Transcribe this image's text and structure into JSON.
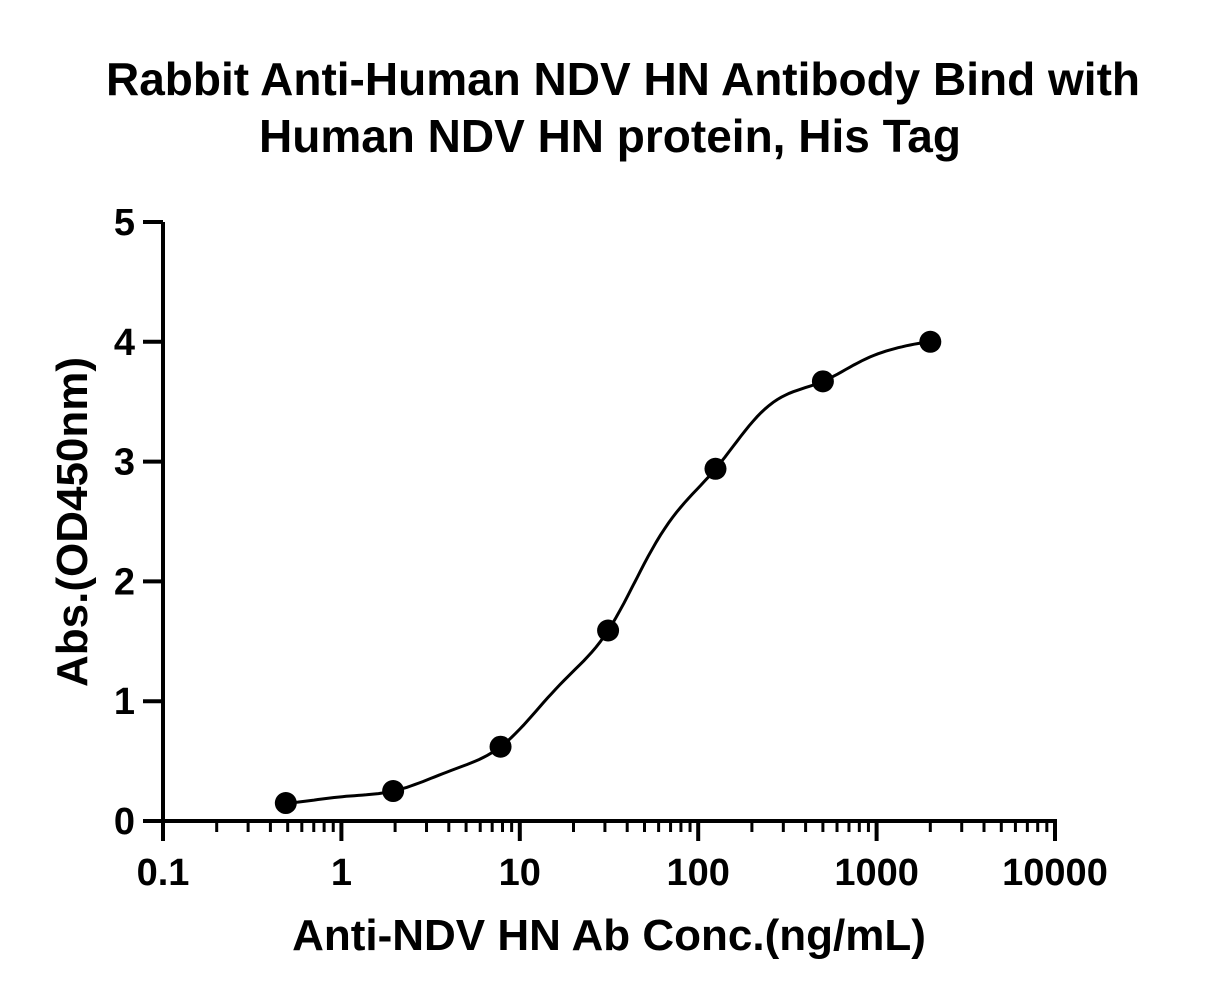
{
  "chart_data": {
    "type": "scatter",
    "title": [
      "Rabbit Anti-Human NDV HN Antibody Bind with",
      "Human NDV HN protein, His Tag"
    ],
    "xlabel": "Anti-NDV HN Ab Conc.(ng/mL)",
    "ylabel": "Abs.(OD450nm)",
    "x_scale": "log",
    "xlim": [
      0.1,
      10000
    ],
    "ylim": [
      0,
      5
    ],
    "x_ticks": [
      0.1,
      1,
      10,
      100,
      1000,
      10000
    ],
    "x_tick_labels": [
      "0.1",
      "1",
      "10",
      "100",
      "1000",
      "10000"
    ],
    "y_ticks": [
      0,
      1,
      2,
      3,
      4,
      5
    ],
    "y_tick_labels": [
      "0",
      "1",
      "2",
      "3",
      "4",
      "5"
    ],
    "grid": false,
    "series": [
      {
        "points": [
          {
            "x": 0.488,
            "y": 0.15
          },
          {
            "x": 1.95,
            "y": 0.25
          },
          {
            "x": 7.8,
            "y": 0.62
          },
          {
            "x": 31.25,
            "y": 1.59
          },
          {
            "x": 125,
            "y": 2.94
          },
          {
            "x": 500,
            "y": 3.67
          },
          {
            "x": 2000,
            "y": 4.0
          }
        ],
        "fit": "four-parameter-logistic",
        "color": "#000000"
      }
    ]
  }
}
